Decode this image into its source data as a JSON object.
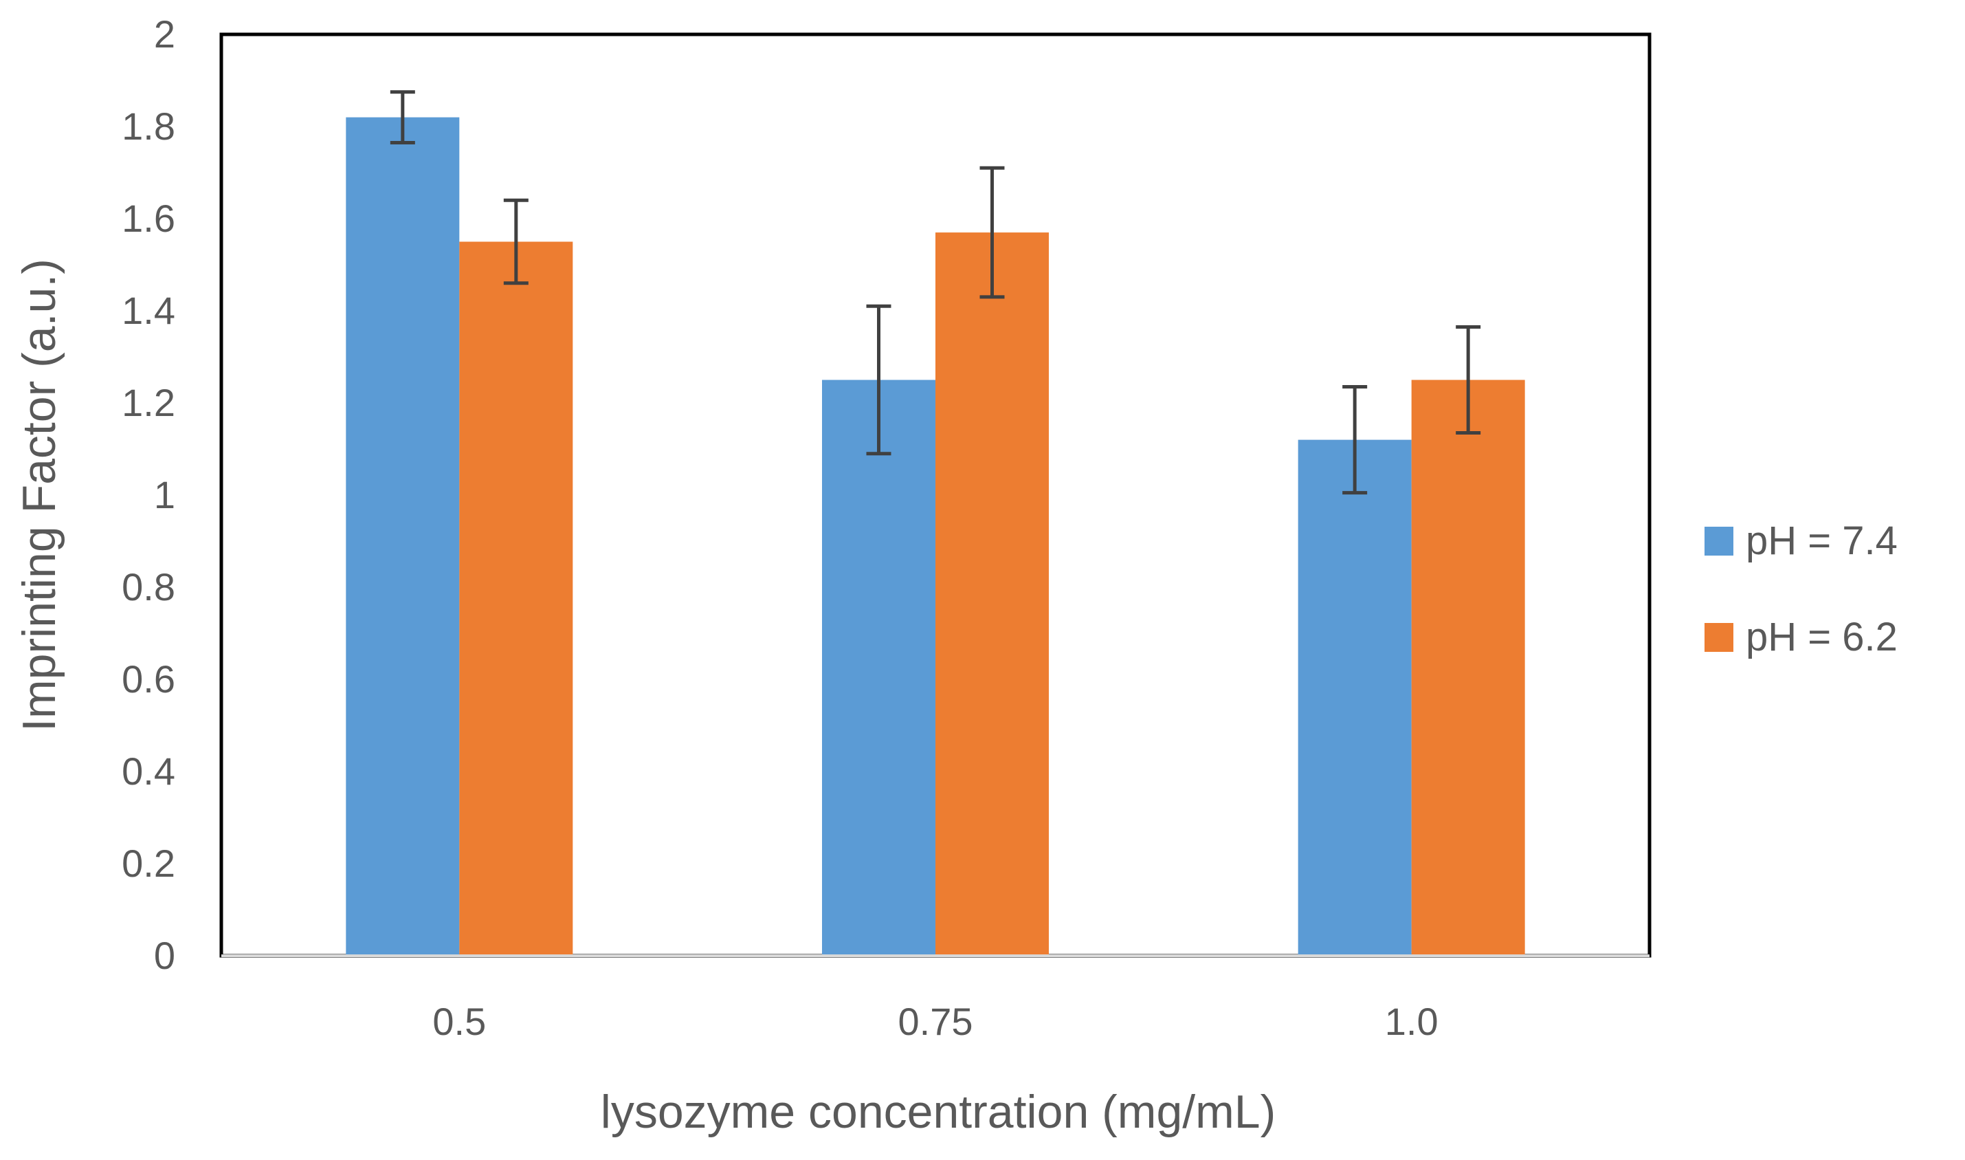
{
  "chart_data": {
    "type": "bar",
    "title": "",
    "xlabel": "lysozyme concentration (mg/mL)",
    "ylabel": "Imprinting Factor (a.u.)",
    "categories": [
      "0.5",
      "0.75",
      "1.0"
    ],
    "ylim": [
      0,
      2
    ],
    "yticks": [
      0,
      0.2,
      0.4,
      0.6,
      0.8,
      1,
      1.2,
      1.4,
      1.6,
      1.8,
      2
    ],
    "ytick_labels": [
      "0",
      "0.2",
      "0.4",
      "0.6",
      "0.8",
      "1",
      "1.2",
      "1.4",
      "1.6",
      "1.8",
      "2"
    ],
    "grid": false,
    "legend_position": "right",
    "series": [
      {
        "name": "pH = 7.4",
        "color": "#5B9BD5",
        "values": [
          1.82,
          1.25,
          1.12
        ],
        "errors": [
          0.055,
          0.16,
          0.115
        ]
      },
      {
        "name": "pH = 6.2",
        "color": "#ED7D31",
        "values": [
          1.55,
          1.57,
          1.25
        ],
        "errors": [
          0.09,
          0.14,
          0.115
        ]
      }
    ]
  }
}
